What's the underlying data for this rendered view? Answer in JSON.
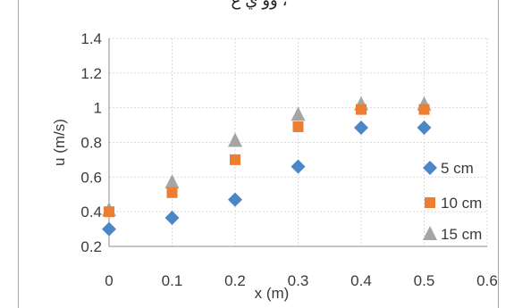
{
  "top_fragment": "، وو ي ع",
  "chart_data": {
    "type": "scatter",
    "title": "",
    "xlabel": "x (m)",
    "ylabel": "u (m/s)",
    "xlim": [
      0,
      0.6
    ],
    "ylim": [
      0.2,
      1.4
    ],
    "xticks": [
      "0",
      "0.1",
      "0.2",
      "0.3",
      "0.4",
      "0.5",
      "0.6"
    ],
    "yticks": [
      "0.2",
      "0.4",
      "0.6",
      "0.8",
      "1",
      "1.2",
      "1.4"
    ],
    "grid": true,
    "legend_position": "right",
    "series": [
      {
        "name": "5 cm",
        "marker": "diamond",
        "color": "#4a86c8",
        "x": [
          0,
          0.1,
          0.2,
          0.3,
          0.4,
          0.5
        ],
        "y": [
          0.3,
          0.365,
          0.47,
          0.66,
          0.885,
          0.885
        ]
      },
      {
        "name": "10 cm",
        "marker": "square",
        "color": "#ed7d31",
        "x": [
          0,
          0.1,
          0.2,
          0.3,
          0.4,
          0.5
        ],
        "y": [
          0.4,
          0.51,
          0.7,
          0.89,
          0.99,
          0.99
        ]
      },
      {
        "name": "15 cm",
        "marker": "triangle",
        "color": "#a5a5a5",
        "x": [
          0,
          0.1,
          0.2,
          0.3,
          0.4,
          0.5
        ],
        "y": [
          0.41,
          0.57,
          0.81,
          0.96,
          1.02,
          1.02
        ]
      }
    ]
  }
}
